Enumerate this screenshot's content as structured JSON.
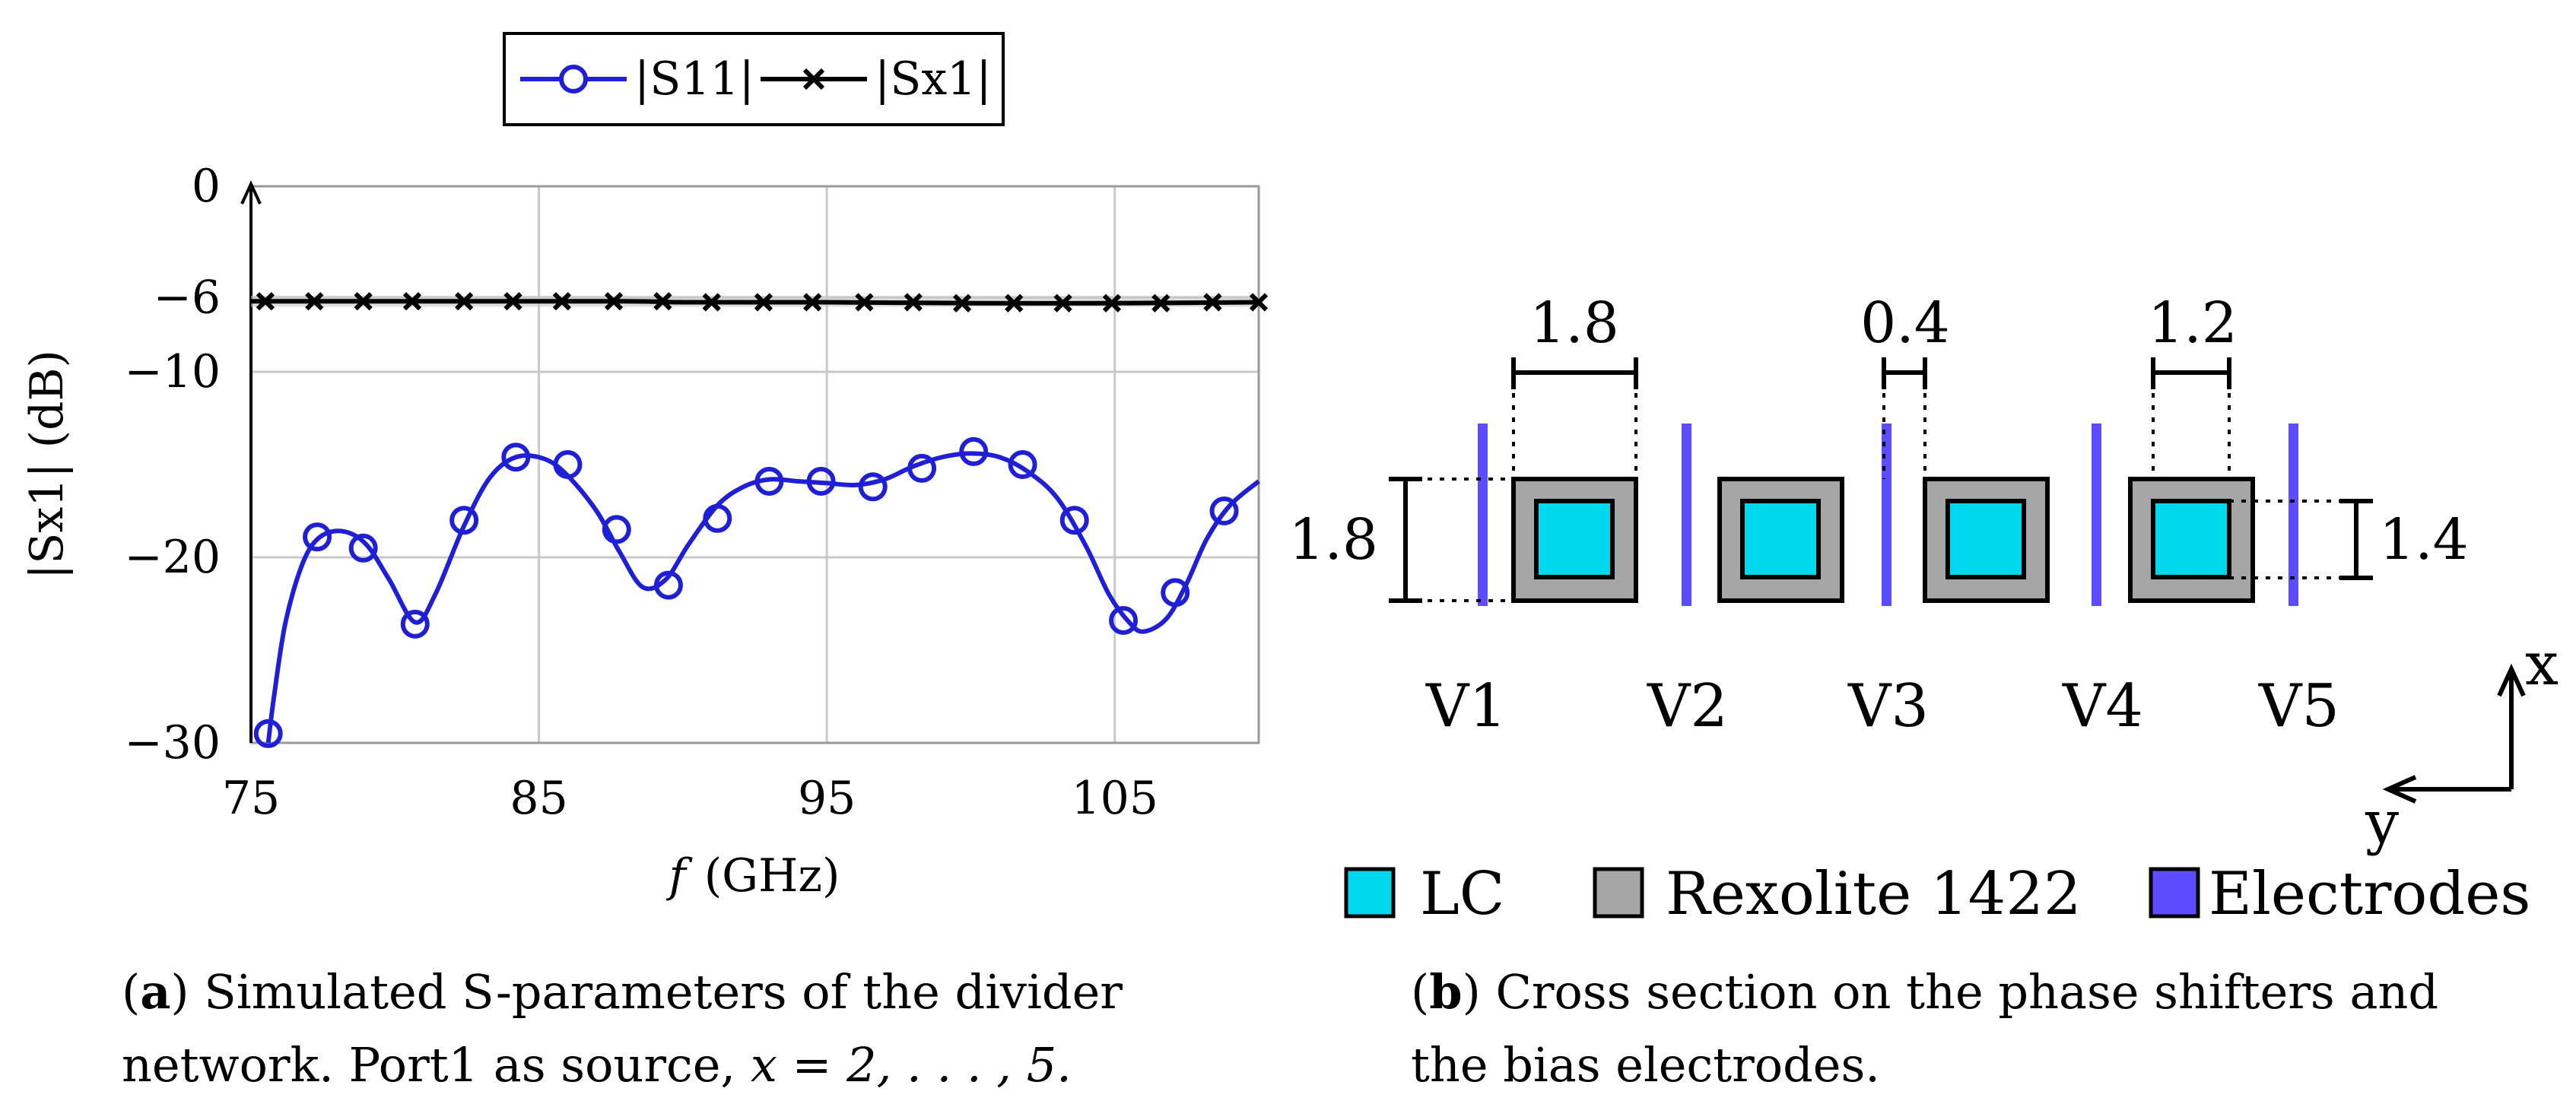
{
  "chart_data": {
    "type": "line",
    "title": "",
    "xlabel": "f (GHz)",
    "ylabel": "|S_x1| (dB)",
    "xlim": [
      75,
      110
    ],
    "ylim": [
      -30,
      0
    ],
    "xticks": [
      75,
      85,
      95,
      105
    ],
    "yticks": [
      0,
      -6,
      -10,
      -20,
      -30
    ],
    "ytick_labels": [
      "0",
      "−6",
      "−10",
      "−20",
      "−30"
    ],
    "xtick_labels": [
      "75",
      "85",
      "95",
      "105"
    ],
    "grid": true,
    "legend_position": "top-center",
    "series": [
      {
        "name": "|S11|",
        "color": "#1f1fd6",
        "marker": "circle",
        "curve": [
          [
            75.6,
            -30.0
          ],
          [
            75.8,
            -27.5
          ],
          [
            76.2,
            -23.5
          ],
          [
            76.8,
            -20.3
          ],
          [
            77.4,
            -18.9
          ],
          [
            78.2,
            -18.6
          ],
          [
            79.0,
            -19.3
          ],
          [
            79.8,
            -21.2
          ],
          [
            80.7,
            -23.5
          ],
          [
            81.4,
            -22.0
          ],
          [
            82.4,
            -18.3
          ],
          [
            83.3,
            -15.7
          ],
          [
            84.2,
            -14.6
          ],
          [
            85.2,
            -14.7
          ],
          [
            86.0,
            -15.6
          ],
          [
            87.0,
            -17.5
          ],
          [
            87.8,
            -19.7
          ],
          [
            88.6,
            -21.6
          ],
          [
            89.4,
            -21.2
          ],
          [
            90.2,
            -19.3
          ],
          [
            91.2,
            -17.2
          ],
          [
            92.1,
            -16.2
          ],
          [
            93.0,
            -15.8
          ],
          [
            94.0,
            -15.9
          ],
          [
            95.0,
            -16.0
          ],
          [
            96.0,
            -16.1
          ],
          [
            97.0,
            -15.8
          ],
          [
            98.0,
            -15.1
          ],
          [
            99.0,
            -14.6
          ],
          [
            100.0,
            -14.4
          ],
          [
            101.0,
            -14.6
          ],
          [
            102.0,
            -15.4
          ],
          [
            103.0,
            -16.8
          ],
          [
            104.0,
            -19.4
          ],
          [
            104.8,
            -22.0
          ],
          [
            105.5,
            -23.5
          ],
          [
            106.0,
            -24.0
          ],
          [
            106.8,
            -23.3
          ],
          [
            107.5,
            -21.4
          ],
          [
            108.2,
            -19.0
          ],
          [
            109.0,
            -17.2
          ],
          [
            110.0,
            -15.9
          ]
        ],
        "markers": [
          [
            75.6,
            -29.5
          ],
          [
            77.3,
            -18.9
          ],
          [
            78.9,
            -19.5
          ],
          [
            80.7,
            -23.6
          ],
          [
            82.4,
            -18.0
          ],
          [
            84.2,
            -14.6
          ],
          [
            86.0,
            -15.0
          ],
          [
            87.7,
            -18.5
          ],
          [
            89.5,
            -21.5
          ],
          [
            91.2,
            -17.9
          ],
          [
            93.0,
            -15.9
          ],
          [
            94.8,
            -15.9
          ],
          [
            96.6,
            -16.2
          ],
          [
            98.3,
            -15.2
          ],
          [
            100.1,
            -14.3
          ],
          [
            101.8,
            -15.0
          ],
          [
            103.6,
            -18.0
          ],
          [
            105.3,
            -23.4
          ],
          [
            107.1,
            -21.9
          ],
          [
            108.8,
            -17.5
          ]
        ]
      },
      {
        "name": "|Sx1|",
        "color": "#000000",
        "marker": "cross",
        "curve": [
          [
            75.0,
            -6.2
          ],
          [
            80.0,
            -6.2
          ],
          [
            88.0,
            -6.2
          ],
          [
            90.0,
            -6.25
          ],
          [
            95.0,
            -6.25
          ],
          [
            100.0,
            -6.3
          ],
          [
            105.0,
            -6.3
          ],
          [
            110.0,
            -6.25
          ]
        ],
        "markers": [
          [
            75.5,
            -6.2
          ],
          [
            77.2,
            -6.2
          ],
          [
            78.9,
            -6.2
          ],
          [
            80.6,
            -6.2
          ],
          [
            82.4,
            -6.2
          ],
          [
            84.1,
            -6.2
          ],
          [
            85.8,
            -6.2
          ],
          [
            87.6,
            -6.2
          ],
          [
            89.3,
            -6.2
          ],
          [
            91.0,
            -6.25
          ],
          [
            92.8,
            -6.25
          ],
          [
            94.5,
            -6.25
          ],
          [
            96.3,
            -6.25
          ],
          [
            98.0,
            -6.25
          ],
          [
            99.7,
            -6.3
          ],
          [
            101.5,
            -6.3
          ],
          [
            103.2,
            -6.3
          ],
          [
            104.9,
            -6.3
          ],
          [
            106.6,
            -6.3
          ],
          [
            108.4,
            -6.25
          ],
          [
            110.0,
            -6.25
          ]
        ]
      }
    ]
  },
  "legend": {
    "s11": "|S11|",
    "sx1": "|Sx1|"
  },
  "axis": {
    "xlabel_var": "f",
    "xlabel_unit": "(GHz)",
    "ylabel": "|Sx1| (dB)"
  },
  "diagram": {
    "dims": {
      "w1": "1.8",
      "w2": "0.4",
      "w3": "1.2",
      "h_left": "1.8",
      "h_right": "1.4"
    },
    "voltages": [
      "V1",
      "V2",
      "V3",
      "V4",
      "V5"
    ],
    "axes": {
      "x": "x",
      "y": "y"
    },
    "colors": {
      "lc": "#00d8ee",
      "rexolite": "#a6a6a6",
      "electrode": "#5b4dff"
    },
    "legend": {
      "lc": "LC",
      "rexolite": "Rexolite 1422",
      "electrodes": "Electrodes"
    }
  },
  "captions": {
    "a_label": "a",
    "a_line1": ") Simulated S-parameters of the divider",
    "a_line2": "network. Port1 as source,",
    "a_math": "x = 2, . . . , 5.",
    "b_label": "b",
    "b_line1": ") Cross section on the phase shifters and",
    "b_line2": "the bias electrodes."
  }
}
